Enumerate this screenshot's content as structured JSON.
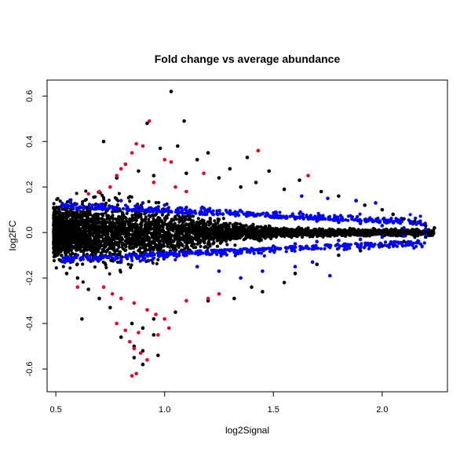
{
  "chart_data": {
    "type": "scatter",
    "title": "Fold change vs average abundance",
    "xlabel": "log2Signal",
    "ylabel": "log2FC",
    "xlim": [
      0.46,
      2.3
    ],
    "ylim": [
      -0.7,
      0.67
    ],
    "x_ticks": [
      0.5,
      1.0,
      1.5,
      2.0
    ],
    "x_tick_labels": [
      "0.5",
      "1.0",
      "1.5",
      "2.0"
    ],
    "y_ticks": [
      -0.6,
      -0.4,
      -0.2,
      0.0,
      0.2,
      0.4,
      0.6
    ],
    "y_tick_labels": [
      "-0.6",
      "-0.4",
      "-0.2",
      "0.0",
      "0.2",
      "0.4",
      "0.6"
    ],
    "grid": false,
    "legend": "none",
    "colors": {
      "black": "#000000",
      "blue": "#0000ff",
      "red": "#ee0022"
    },
    "series": [
      {
        "color": "black",
        "points": [
          [
            1.03,
            0.62
          ],
          [
            1.09,
            0.49
          ],
          [
            0.92,
            0.48
          ],
          [
            0.72,
            0.4
          ],
          [
            1.06,
            0.38
          ],
          [
            0.98,
            0.37
          ],
          [
            1.2,
            0.35
          ],
          [
            1.38,
            0.33
          ],
          [
            1.15,
            0.32
          ],
          [
            0.82,
            0.3
          ],
          [
            1.3,
            0.28
          ],
          [
            1.48,
            0.27
          ],
          [
            0.88,
            0.27
          ],
          [
            1.1,
            0.26
          ],
          [
            0.95,
            0.25
          ],
          [
            1.25,
            0.24
          ],
          [
            1.62,
            0.23
          ],
          [
            1.42,
            0.22
          ],
          [
            0.78,
            0.24
          ],
          [
            1.35,
            0.2
          ],
          [
            1.55,
            0.19
          ],
          [
            1.72,
            0.18
          ],
          [
            1.8,
            0.16
          ],
          [
            1.88,
            0.14
          ],
          [
            1.92,
            0.12
          ],
          [
            2.0,
            0.1
          ],
          [
            2.05,
            0.08
          ],
          [
            2.1,
            0.06
          ],
          [
            2.15,
            0.05
          ],
          [
            2.2,
            0.03
          ],
          [
            1.45,
            -0.26
          ],
          [
            1.32,
            -0.29
          ],
          [
            1.2,
            -0.3
          ],
          [
            1.05,
            -0.35
          ],
          [
            0.95,
            -0.38
          ],
          [
            0.85,
            -0.4
          ],
          [
            0.9,
            -0.42
          ],
          [
            0.95,
            -0.45
          ],
          [
            0.8,
            -0.46
          ],
          [
            0.86,
            -0.5
          ],
          [
            0.9,
            -0.52
          ],
          [
            0.86,
            -0.55
          ],
          [
            0.9,
            -0.58
          ],
          [
            0.97,
            -0.54
          ],
          [
            0.62,
            -0.38
          ],
          [
            0.55,
            -0.18
          ],
          [
            0.6,
            -0.2
          ],
          [
            0.65,
            -0.25
          ],
          [
            0.7,
            -0.29
          ],
          [
            0.75,
            -0.33
          ],
          [
            1.6,
            -0.18
          ],
          [
            1.7,
            -0.14
          ],
          [
            1.8,
            -0.1
          ],
          [
            1.9,
            -0.08
          ],
          [
            2.0,
            -0.06
          ],
          [
            2.1,
            -0.04
          ],
          [
            2.2,
            -0.02
          ],
          [
            2.24,
            0.02
          ],
          [
            1.55,
            -0.22
          ],
          [
            1.4,
            -0.24
          ]
        ]
      },
      {
        "color": "blue",
        "points": [
          [
            0.6,
            0.1
          ],
          [
            0.7,
            0.12
          ],
          [
            0.8,
            0.14
          ],
          [
            0.9,
            0.13
          ],
          [
            1.0,
            0.12
          ],
          [
            1.1,
            0.11
          ],
          [
            1.2,
            0.1
          ],
          [
            1.3,
            0.09
          ],
          [
            1.4,
            0.08
          ],
          [
            1.5,
            0.07
          ],
          [
            1.6,
            0.06
          ],
          [
            1.7,
            0.05
          ],
          [
            1.8,
            0.045
          ],
          [
            1.9,
            0.04
          ],
          [
            2.0,
            0.03
          ],
          [
            2.1,
            0.02
          ],
          [
            2.2,
            0.015
          ],
          [
            0.6,
            -0.1
          ],
          [
            0.7,
            -0.12
          ],
          [
            0.8,
            -0.13
          ],
          [
            0.9,
            -0.12
          ],
          [
            1.0,
            -0.11
          ],
          [
            1.1,
            -0.1
          ],
          [
            1.2,
            -0.09
          ],
          [
            1.3,
            -0.08
          ],
          [
            1.4,
            -0.07
          ],
          [
            1.5,
            -0.06
          ],
          [
            1.6,
            -0.05
          ],
          [
            1.7,
            -0.04
          ],
          [
            1.8,
            -0.035
          ],
          [
            1.9,
            -0.03
          ],
          [
            2.0,
            -0.02
          ],
          [
            2.1,
            -0.015
          ],
          [
            2.2,
            -0.01
          ],
          [
            1.35,
            -0.2
          ],
          [
            1.45,
            -0.17
          ],
          [
            1.6,
            -0.15
          ],
          [
            1.68,
            -0.13
          ],
          [
            1.76,
            -0.19
          ],
          [
            1.88,
            0.14
          ],
          [
            1.97,
            0.13
          ],
          [
            1.75,
            0.15
          ],
          [
            1.63,
            0.16
          ],
          [
            1.25,
            -0.17
          ],
          [
            1.15,
            -0.15
          ]
        ]
      },
      {
        "color": "red",
        "points": [
          [
            0.93,
            0.49
          ],
          [
            0.87,
            0.39
          ],
          [
            0.9,
            0.38
          ],
          [
            0.85,
            0.35
          ],
          [
            0.82,
            0.3
          ],
          [
            1.0,
            0.32
          ],
          [
            1.03,
            0.31
          ],
          [
            1.18,
            0.26
          ],
          [
            1.43,
            0.36
          ],
          [
            1.66,
            0.25
          ],
          [
            0.8,
            0.28
          ],
          [
            0.95,
            0.22
          ],
          [
            1.05,
            0.2
          ],
          [
            1.1,
            0.18
          ],
          [
            0.7,
            0.18
          ],
          [
            0.65,
            0.17
          ],
          [
            0.75,
            0.2
          ],
          [
            0.78,
            0.25
          ],
          [
            0.72,
            -0.24
          ],
          [
            0.76,
            -0.27
          ],
          [
            0.8,
            -0.29
          ],
          [
            0.86,
            -0.31
          ],
          [
            0.92,
            -0.34
          ],
          [
            0.96,
            -0.36
          ],
          [
            1.0,
            -0.38
          ],
          [
            0.78,
            -0.4
          ],
          [
            0.82,
            -0.43
          ],
          [
            0.88,
            -0.44
          ],
          [
            0.84,
            -0.48
          ],
          [
            0.86,
            -0.51
          ],
          [
            0.89,
            -0.53
          ],
          [
            0.92,
            -0.56
          ],
          [
            0.85,
            -0.63
          ],
          [
            0.87,
            -0.62
          ],
          [
            0.97,
            -0.45
          ],
          [
            1.02,
            -0.42
          ],
          [
            1.1,
            -0.3
          ],
          [
            1.2,
            -0.29
          ],
          [
            1.25,
            -0.27
          ],
          [
            0.6,
            -0.24
          ]
        ]
      }
    ]
  }
}
